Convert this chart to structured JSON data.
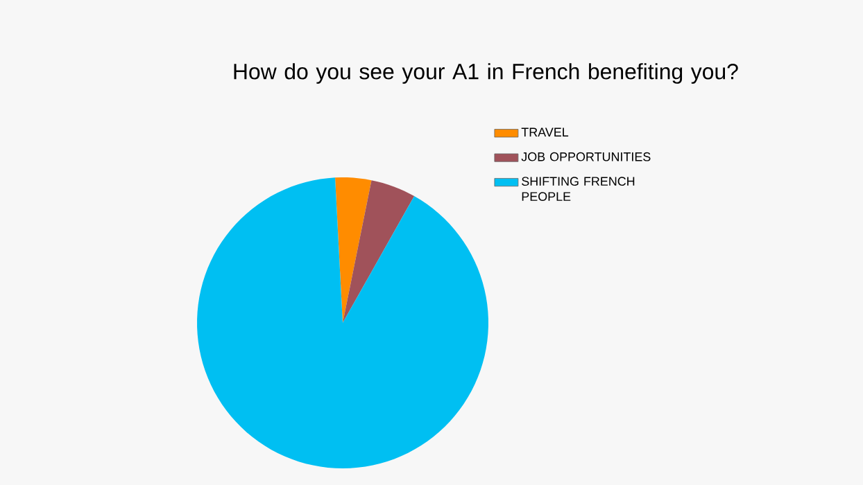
{
  "chart_data": {
    "type": "pie",
    "title": "How do you see your A1 in French benefiting you?",
    "categories": [
      "TRAVEL",
      "JOB OPPORTUNITIES",
      "SHIFTING FRENCH PEOPLE"
    ],
    "values": [
      4,
      5,
      91
    ],
    "colors": [
      "#ff8c00",
      "#a0525a",
      "#00bff2"
    ],
    "legend": "top right"
  }
}
